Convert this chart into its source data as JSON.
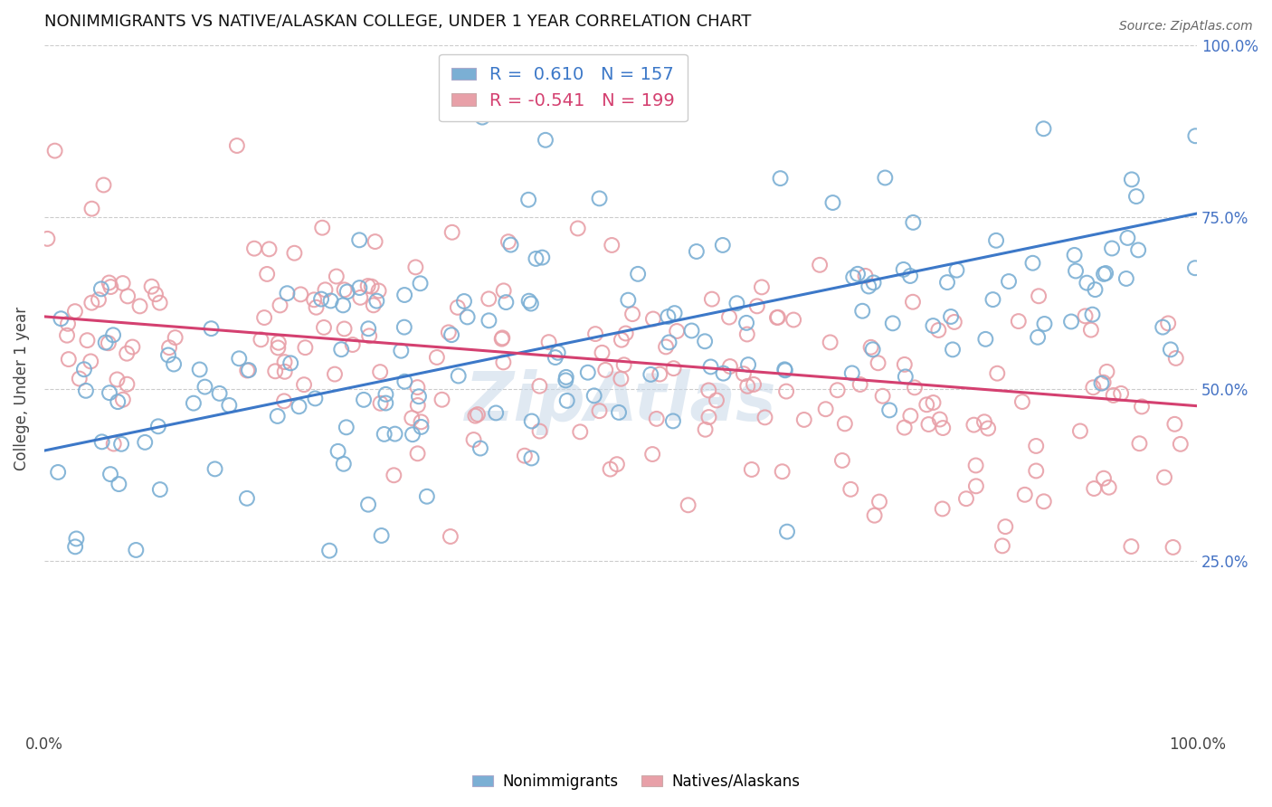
{
  "title": "NONIMMIGRANTS VS NATIVE/ALASKAN COLLEGE, UNDER 1 YEAR CORRELATION CHART",
  "source": "Source: ZipAtlas.com",
  "ylabel": "College, Under 1 year",
  "blue_R": 0.61,
  "blue_N": 157,
  "pink_R": -0.541,
  "pink_N": 199,
  "blue_color": "#7bafd4",
  "pink_color": "#e8a0a8",
  "blue_line_color": "#3c78c8",
  "pink_line_color": "#d44070",
  "axis_tick_color_blue": "#4472c4",
  "legend_R_blue": "0.610",
  "legend_R_pink": "-0.541",
  "legend_N_blue": "157",
  "legend_N_pink": "199",
  "xlim": [
    0,
    1
  ],
  "ylim": [
    0,
    1
  ],
  "ytick_labels_right": [
    "25.0%",
    "50.0%",
    "75.0%",
    "100.0%"
  ],
  "ytick_positions_right": [
    0.25,
    0.5,
    0.75,
    1.0
  ],
  "watermark": "ZipAtlas",
  "background_color": "#ffffff",
  "grid_color": "#cccccc",
  "title_fontsize": 13,
  "blue_line_start_y": 0.41,
  "blue_line_end_y": 0.755,
  "pink_line_start_y": 0.605,
  "pink_line_end_y": 0.475,
  "seed_blue": 77,
  "seed_pink": 55
}
